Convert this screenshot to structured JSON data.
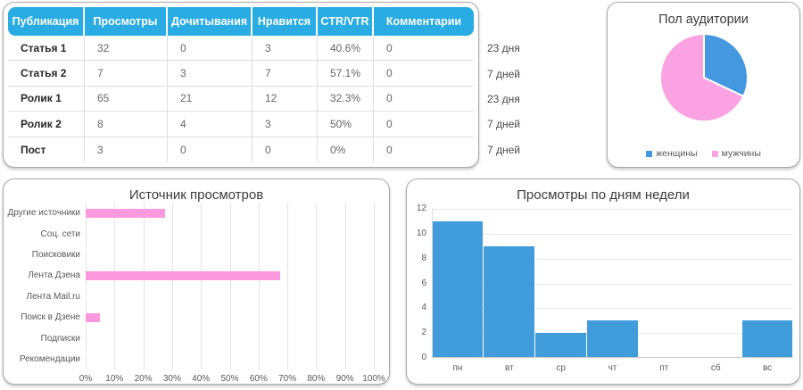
{
  "colors": {
    "header_blue": "#29ABE4",
    "bar_blue": "#419CDC",
    "pie_blue": "#4398DF",
    "bar_pink": "#FB98DE",
    "pie_pink": "#FBA3E2",
    "grid_gray": "#E3E3E3"
  },
  "table": {
    "columns": [
      "Публикация",
      "Просмотры",
      "Дочитывания",
      "Нравится",
      "CTR/VTR",
      "Комментарии"
    ],
    "rows": [
      {
        "cells": [
          "Статья 1",
          "32",
          "0",
          "3",
          "40.6%",
          "0"
        ],
        "duration": "23 дня"
      },
      {
        "cells": [
          "Статья 2",
          "7",
          "3",
          "7",
          "57.1%",
          "0"
        ],
        "duration": "7 дней"
      },
      {
        "cells": [
          "Ролик 1",
          "65",
          "21",
          "12",
          "32.3%",
          "0"
        ],
        "duration": "23 дня"
      },
      {
        "cells": [
          "Ролик 2",
          "8",
          "4",
          "3",
          "50%",
          "0"
        ],
        "duration": "7 дней"
      },
      {
        "cells": [
          "Пост",
          "3",
          "0",
          "0",
          "0%",
          "0"
        ],
        "duration": "7 дней"
      }
    ]
  },
  "chart_data": [
    {
      "id": "audience-gender",
      "type": "pie",
      "title": "Пол аудитории",
      "labels": [
        "женщины",
        "мужчины"
      ],
      "values": [
        32,
        68
      ],
      "slice_colors": [
        "#4398DF",
        "#FBA3E2"
      ],
      "legend_position": "bottom"
    },
    {
      "id": "view-sources",
      "type": "bar",
      "orientation": "horizontal",
      "title": "Источник просмотров",
      "categories": [
        "Другие источники",
        "Соц. сети",
        "Поисковики",
        "Лента Дзена",
        "Лента Mail.ru",
        "Поиск в Дзене",
        "Подписки",
        "Рекомендации"
      ],
      "values": [
        27.5,
        0,
        0,
        67.5,
        0,
        5,
        0,
        0
      ],
      "xlim": [
        0,
        100
      ],
      "x_ticks": [
        "0%",
        "10%",
        "20%",
        "30%",
        "40%",
        "50%",
        "60%",
        "70%",
        "80%",
        "90%",
        "100%"
      ],
      "bar_color": "#FB98DE",
      "grid": true
    },
    {
      "id": "views-by-weekday",
      "type": "bar",
      "orientation": "vertical",
      "title": "Просмотры по дням недели",
      "categories": [
        "пн",
        "вт",
        "ср",
        "чт",
        "пт",
        "сб",
        "вс"
      ],
      "values": [
        11,
        9,
        2,
        3,
        0,
        0,
        3
      ],
      "ylim": [
        0,
        12
      ],
      "y_ticks": [
        0,
        2,
        4,
        6,
        8,
        10,
        12
      ],
      "bar_color": "#419CDC",
      "grid": true
    }
  ]
}
